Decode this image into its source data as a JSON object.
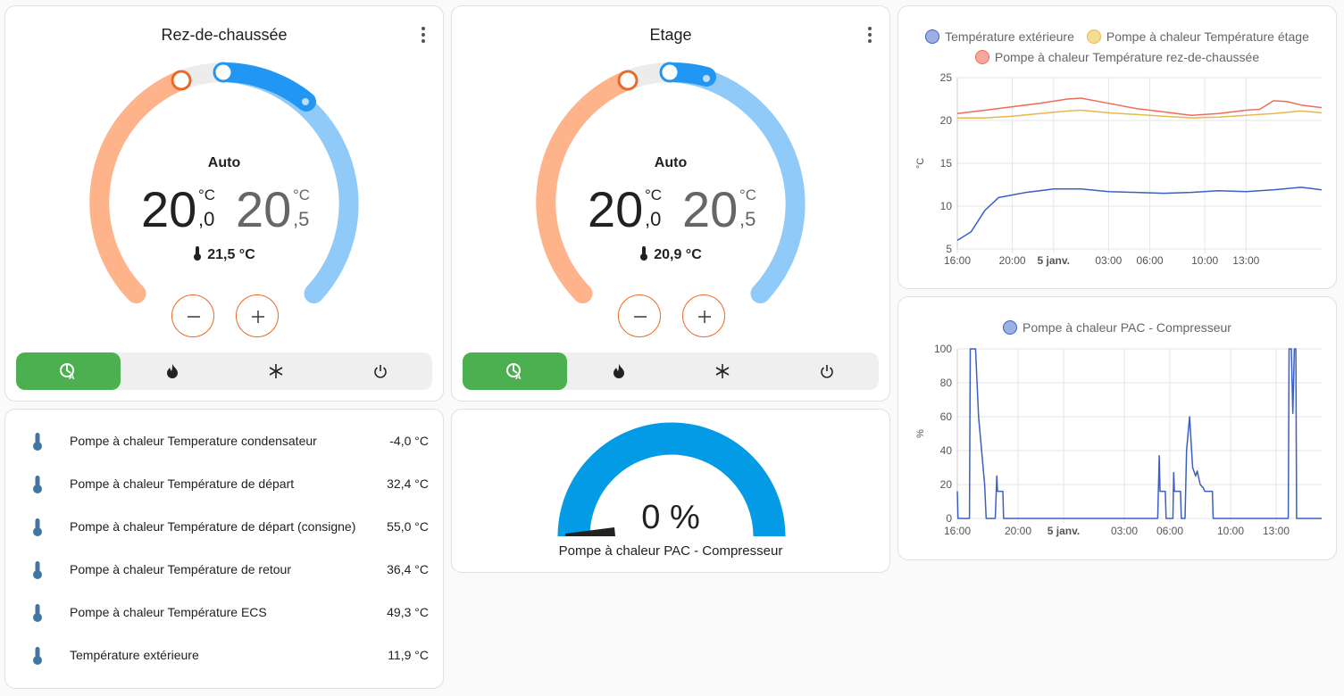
{
  "thermostats": [
    {
      "title": "Rez-de-chaussée",
      "mode": "Auto",
      "low_int": "20",
      "low_dec": ",0",
      "high_int": "20",
      "high_dec": ",5",
      "unit": "°C",
      "current_temp": "21,5 °C",
      "modes": [
        "auto",
        "heat",
        "cool",
        "off"
      ],
      "active_mode": "auto"
    },
    {
      "title": "Etage",
      "mode": "Auto",
      "low_int": "20",
      "low_dec": ",0",
      "high_int": "20",
      "high_dec": ",5",
      "unit": "°C",
      "current_temp": "20,9 °C",
      "modes": [
        "auto",
        "heat",
        "cool",
        "off"
      ],
      "active_mode": "auto"
    }
  ],
  "colors": {
    "heat": "#ffb38a",
    "heat_border": "#e86a24",
    "cool": "#90caf9",
    "cool_strong": "#2196f3",
    "active_mode": "#4caf50",
    "gauge": "#039be5"
  },
  "entities": [
    {
      "name": "Pompe à chaleur Temperature condensateur",
      "value": "-4,0 °C"
    },
    {
      "name": "Pompe à chaleur Température de départ",
      "value": "32,4 °C"
    },
    {
      "name": "Pompe à chaleur Température de départ (consigne)",
      "value": "55,0 °C"
    },
    {
      "name": "Pompe à chaleur Température de retour",
      "value": "36,4 °C"
    },
    {
      "name": "Pompe à chaleur Température ECS",
      "value": "49,3 °C"
    },
    {
      "name": "Température extérieure",
      "value": "11,9 °C"
    }
  ],
  "gauge": {
    "value": 0,
    "value_label": "0 %",
    "name": "Pompe à chaleur PAC - Compresseur"
  },
  "chart_data": [
    {
      "type": "line",
      "ylabel": "°C",
      "ylim": [
        5,
        25
      ],
      "yticks": [
        "25",
        "20",
        "15",
        "10",
        "5"
      ],
      "xticks": [
        "16:00",
        "20:00",
        "5 janv.",
        "03:00",
        "06:00",
        "10:00",
        "13:00"
      ],
      "grid": true,
      "legend": "top",
      "series": [
        {
          "name": "Température extérieure",
          "color": "#3b5fc4",
          "fill": "#9cb0e6",
          "values": [
            [
              0,
              6
            ],
            [
              1,
              7
            ],
            [
              2,
              9.5
            ],
            [
              3,
              11
            ],
            [
              4,
              11.3
            ],
            [
              5,
              11.6
            ],
            [
              6,
              11.8
            ],
            [
              7,
              12
            ],
            [
              9,
              12
            ],
            [
              11,
              11.7
            ],
            [
              13,
              11.6
            ],
            [
              15,
              11.5
            ],
            [
              17,
              11.6
            ],
            [
              19,
              11.8
            ],
            [
              21,
              11.7
            ],
            [
              23,
              11.9
            ],
            [
              25,
              12.2
            ],
            [
              26,
              12
            ],
            [
              26.5,
              11.9
            ]
          ]
        },
        {
          "name": "Pompe à chaleur Température étage",
          "color": "#e8b84a",
          "fill": "#f5dc8f",
          "values": [
            [
              0,
              20.3
            ],
            [
              2,
              20.3
            ],
            [
              4,
              20.5
            ],
            [
              6,
              20.8
            ],
            [
              8,
              21.1
            ],
            [
              9,
              21.2
            ],
            [
              11,
              20.9
            ],
            [
              13,
              20.7
            ],
            [
              15,
              20.5
            ],
            [
              17,
              20.3
            ],
            [
              19,
              20.4
            ],
            [
              21,
              20.6
            ],
            [
              23,
              20.8
            ],
            [
              25,
              21.1
            ],
            [
              26.5,
              20.9
            ]
          ]
        },
        {
          "name": "Pompe à chaleur Température rez-de-chaussée",
          "color": "#ef6c5a",
          "fill": "#f4a79b",
          "values": [
            [
              0,
              20.8
            ],
            [
              2,
              21.2
            ],
            [
              4,
              21.6
            ],
            [
              6,
              22.0
            ],
            [
              8,
              22.5
            ],
            [
              9,
              22.6
            ],
            [
              11,
              22.0
            ],
            [
              13,
              21.4
            ],
            [
              15,
              21.0
            ],
            [
              17,
              20.6
            ],
            [
              19,
              20.8
            ],
            [
              21,
              21.2
            ],
            [
              22,
              21.3
            ],
            [
              23,
              22.3
            ],
            [
              24,
              22.2
            ],
            [
              25,
              21.8
            ],
            [
              26.5,
              21.5
            ]
          ]
        }
      ]
    },
    {
      "type": "line",
      "ylabel": "%",
      "ylim": [
        0,
        100
      ],
      "yticks": [
        "100",
        "80",
        "60",
        "40",
        "20",
        "0"
      ],
      "xticks": [
        "16:00",
        "20:00",
        "5 janv.",
        "03:00",
        "06:00",
        "10:00",
        "13:00"
      ],
      "grid": true,
      "legend": "top",
      "series": [
        {
          "name": "Pompe à chaleur PAC - Compresseur",
          "color": "#3b5fc4",
          "fill": "#9cb0e6",
          "values": [
            [
              0,
              16
            ],
            [
              0.05,
              0
            ],
            [
              0.8,
              0
            ],
            [
              0.85,
              100
            ],
            [
              1.2,
              100
            ],
            [
              1.4,
              60
            ],
            [
              1.8,
              20
            ],
            [
              1.9,
              0
            ],
            [
              2.5,
              0
            ],
            [
              2.6,
              25
            ],
            [
              2.65,
              16
            ],
            [
              3,
              16
            ],
            [
              3.05,
              0
            ],
            [
              13.2,
              0
            ],
            [
              13.3,
              37
            ],
            [
              13.35,
              16
            ],
            [
              13.7,
              16
            ],
            [
              13.75,
              0
            ],
            [
              14.2,
              0
            ],
            [
              14.25,
              27
            ],
            [
              14.3,
              16
            ],
            [
              14.7,
              16
            ],
            [
              14.75,
              0
            ],
            [
              15.0,
              0
            ],
            [
              15.1,
              40
            ],
            [
              15.3,
              60
            ],
            [
              15.5,
              30
            ],
            [
              15.7,
              25
            ],
            [
              15.8,
              28
            ],
            [
              16.0,
              20
            ],
            [
              16.2,
              18
            ],
            [
              16.3,
              16
            ],
            [
              16.8,
              16
            ],
            [
              16.85,
              0
            ],
            [
              21.8,
              0
            ],
            [
              21.85,
              100
            ],
            [
              22.0,
              100
            ],
            [
              22.1,
              62
            ],
            [
              22.2,
              100
            ],
            [
              22.3,
              100
            ],
            [
              22.35,
              0
            ],
            [
              24,
              0
            ]
          ]
        }
      ]
    }
  ]
}
